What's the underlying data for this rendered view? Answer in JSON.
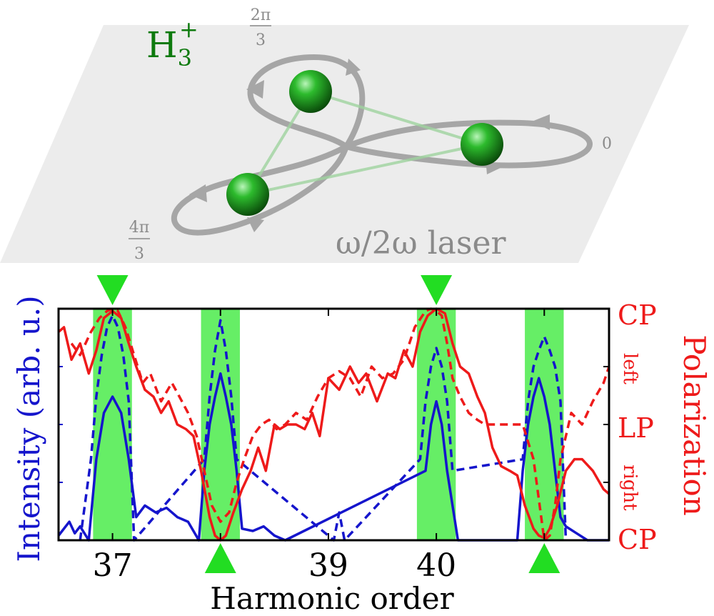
{
  "molecule": {
    "label_base": "H",
    "label_sub": "3",
    "label_sup": "+",
    "phase_2pi3_num": "2π",
    "phase_2pi3_den": "3",
    "phase_4pi3_num": "4π",
    "phase_4pi3_den": "3",
    "phase_0": "0",
    "laser_label": "ω/2ω laser"
  },
  "colors": {
    "intensity": "#1515cc",
    "polarization": "#ee1a1a",
    "highlight": "#66ee66",
    "marker": "#22dd22",
    "plane": "#ececec",
    "orbit": "#a6a6a6",
    "label_green": "#0e7a0e"
  },
  "chart_data": {
    "type": "line",
    "xlabel": "Harmonic order",
    "ylabel_left": "Intensity (arb. u.)",
    "ylabel_right": "Polarization",
    "x_range": [
      36.5,
      41.6
    ],
    "x_ticks": [
      37,
      39,
      40
    ],
    "x_tick_labels": [
      "37",
      "39",
      "40"
    ],
    "right_tick_labels": {
      "top": "CP",
      "upper": "left",
      "middle": "LP",
      "lower": "right",
      "bottom": "CP"
    },
    "highlight_centers": [
      37,
      38,
      40,
      41
    ],
    "markers_top": [
      37,
      40
    ],
    "markers_bottom": [
      38,
      41
    ],
    "series": [
      {
        "style": "solid",
        "color": "blue",
        "x": [
          36.5,
          36.6,
          36.65,
          36.7,
          36.78,
          36.85,
          36.92,
          37,
          37.08,
          37.15,
          37.22,
          37.3,
          37.4,
          37.5,
          37.6,
          37.7,
          37.8,
          37.85,
          37.9,
          37.95,
          38,
          38.05,
          38.1,
          38.15,
          38.2,
          38.3,
          38.4,
          38.5,
          38.6,
          39.9,
          39.95,
          40,
          40.05,
          40.1,
          40.2,
          40.4,
          40.6,
          40.75,
          40.8,
          40.85,
          40.9,
          40.95,
          41,
          41.05,
          41.1,
          41.15,
          41.2,
          41.3,
          41.4,
          41.5,
          41.6
        ],
        "y": [
          0.02,
          0.08,
          0.03,
          0.06,
          0.0,
          0.35,
          0.55,
          0.62,
          0.55,
          0.35,
          0.1,
          0.15,
          0.12,
          0.14,
          0.1,
          0.08,
          0.0,
          0.3,
          0.5,
          0.62,
          0.72,
          0.62,
          0.5,
          0.3,
          0.05,
          0.04,
          0.06,
          0.02,
          0.0,
          0.3,
          0.5,
          0.6,
          0.5,
          0.3,
          0.0,
          0.0,
          0.0,
          0.0,
          0.3,
          0.5,
          0.62,
          0.7,
          0.62,
          0.5,
          0.3,
          0.1,
          0.06,
          0.03,
          0.0,
          0.0,
          0.0
        ]
      },
      {
        "style": "dashed",
        "color": "blue",
        "x": [
          36.7,
          36.8,
          36.85,
          36.9,
          36.95,
          37,
          37.05,
          37.1,
          37.15,
          37.2,
          37.85,
          37.9,
          37.95,
          38,
          38.05,
          38.1,
          38.15,
          39.05,
          39.1,
          39.15,
          39.85,
          39.9,
          39.95,
          40,
          40.05,
          40.1,
          40.15,
          40.8,
          40.85,
          40.9,
          40.95,
          41,
          41.05,
          41.1,
          41.15,
          41.2
        ],
        "y": [
          0.0,
          0.35,
          0.62,
          0.8,
          0.92,
          0.97,
          0.92,
          0.8,
          0.6,
          0.0,
          0.35,
          0.62,
          0.82,
          0.95,
          0.82,
          0.62,
          0.35,
          0.0,
          0.12,
          0.0,
          0.35,
          0.6,
          0.75,
          0.83,
          0.75,
          0.6,
          0.3,
          0.35,
          0.6,
          0.75,
          0.82,
          0.88,
          0.82,
          0.75,
          0.6,
          0.0
        ]
      },
      {
        "style": "solid",
        "color": "red",
        "x": [
          36.5,
          36.55,
          36.62,
          36.7,
          36.78,
          36.85,
          36.92,
          37,
          37.08,
          37.15,
          37.22,
          37.3,
          37.38,
          37.45,
          37.52,
          37.6,
          37.68,
          37.75,
          37.82,
          37.9,
          37.95,
          38,
          38.05,
          38.12,
          38.2,
          38.28,
          38.35,
          38.42,
          38.5,
          38.55,
          38.62,
          38.7,
          38.78,
          38.85,
          38.92,
          39,
          39.1,
          39.2,
          39.28,
          39.35,
          39.45,
          39.55,
          39.62,
          39.7,
          39.78,
          39.85,
          39.92,
          40,
          40.08,
          40.15,
          40.22,
          40.3,
          40.38,
          40.45,
          40.52,
          40.6,
          40.68,
          40.75,
          40.82,
          40.9,
          40.95,
          41,
          41.05,
          41.12,
          41.2,
          41.28,
          41.35,
          41.45,
          41.55,
          41.6
        ],
        "y": [
          0.9,
          0.92,
          0.78,
          0.85,
          0.72,
          0.82,
          0.96,
          0.99,
          0.96,
          0.85,
          0.75,
          0.65,
          0.62,
          0.55,
          0.6,
          0.5,
          0.48,
          0.45,
          0.3,
          0.1,
          0.02,
          0.0,
          0.02,
          0.12,
          0.22,
          0.3,
          0.4,
          0.3,
          0.5,
          0.48,
          0.5,
          0.5,
          0.48,
          0.55,
          0.45,
          0.7,
          0.65,
          0.75,
          0.68,
          0.72,
          0.6,
          0.72,
          0.7,
          0.82,
          0.75,
          0.9,
          0.97,
          1.0,
          0.98,
          0.85,
          0.75,
          0.72,
          0.62,
          0.55,
          0.4,
          0.32,
          0.3,
          0.28,
          0.15,
          0.05,
          0.02,
          0.01,
          0.05,
          0.15,
          0.3,
          0.35,
          0.35,
          0.3,
          0.22,
          0.2
        ]
      },
      {
        "style": "dashed",
        "color": "red",
        "x": [
          36.62,
          36.7,
          36.8,
          36.88,
          36.95,
          37,
          37.05,
          37.12,
          37.2,
          37.28,
          37.35,
          37.45,
          37.55,
          37.62,
          37.7,
          37.78,
          37.85,
          37.92,
          38,
          38.08,
          38.15,
          38.22,
          38.3,
          38.38,
          38.45,
          38.52,
          38.6,
          38.7,
          38.8,
          38.9,
          39,
          39.1,
          39.2,
          39.3,
          39.4,
          39.5,
          39.6,
          39.7,
          39.8,
          39.9,
          39.95,
          40,
          40.05,
          40.1,
          40.15,
          40.22,
          40.3,
          40.38,
          40.45,
          40.52,
          40.6,
          40.8,
          40.9,
          41,
          41.05,
          41.1,
          41.15,
          41.25,
          41.35,
          41.45,
          41.55,
          41.6
        ],
        "y": [
          0.85,
          0.8,
          0.9,
          0.96,
          0.99,
          1.0,
          0.99,
          0.92,
          0.8,
          0.68,
          0.72,
          0.6,
          0.68,
          0.62,
          0.55,
          0.45,
          0.3,
          0.15,
          0.08,
          0.12,
          0.25,
          0.35,
          0.45,
          0.5,
          0.52,
          0.48,
          0.5,
          0.55,
          0.52,
          0.62,
          0.7,
          0.73,
          0.7,
          0.62,
          0.75,
          0.7,
          0.72,
          0.78,
          0.92,
          0.99,
          1.0,
          0.99,
          0.97,
          0.85,
          0.7,
          0.62,
          0.55,
          0.52,
          0.5,
          0.5,
          0.5,
          0.5,
          0.35,
          0.0,
          0.02,
          0.15,
          0.35,
          0.55,
          0.5,
          0.6,
          0.68,
          0.75
        ]
      }
    ]
  }
}
